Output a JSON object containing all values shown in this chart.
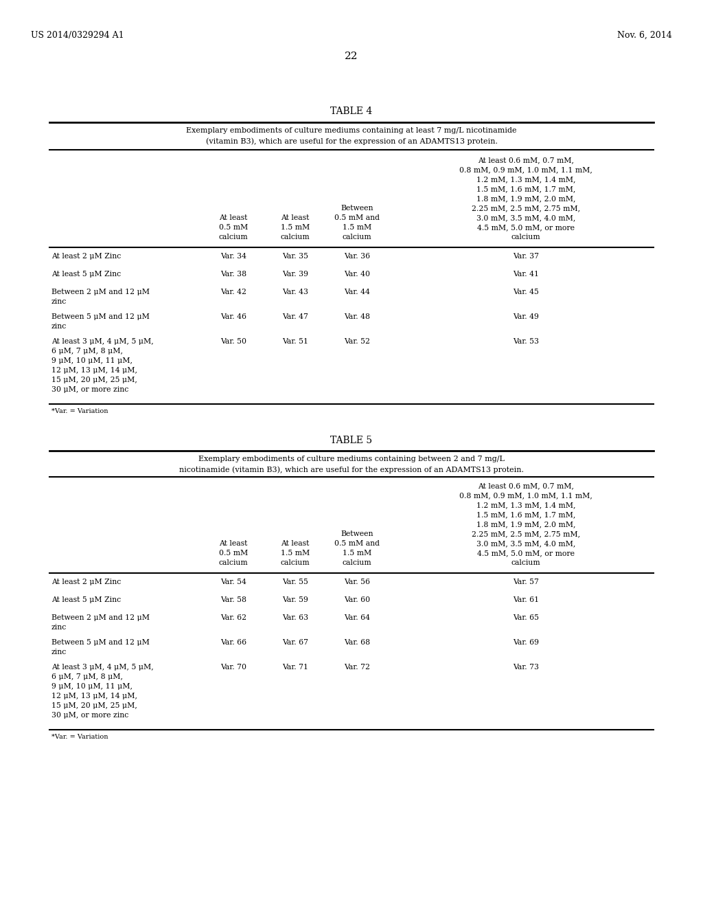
{
  "header_left": "US 2014/0329294 A1",
  "header_right": "Nov. 6, 2014",
  "page_number": "22",
  "bg_color": "#ffffff",
  "table4": {
    "title": "TABLE 4",
    "caption_line1": "Exemplary embodiments of culture mediums containing at least 7 mg/L nicotinamide",
    "caption_line2": "(vitamin B3), which are useful for the expression of an ADAMTS13 protein.",
    "c4_header": [
      "At least 0.6 mM, 0.7 mM,",
      "0.8 mM, 0.9 mM, 1.0 mM, 1.1 mM,",
      "1.2 mM, 1.3 mM, 1.4 mM,",
      "1.5 mM, 1.6 mM, 1.7 mM,",
      "1.8 mM, 1.9 mM, 2.0 mM,",
      "2.25 mM, 2.5 mM, 2.75 mM,",
      "3.0 mM, 3.5 mM, 4.0 mM,",
      "4.5 mM, 5.0 mM, or more",
      "calcium"
    ],
    "rows": [
      {
        "label": [
          "At least 2 μM Zinc"
        ],
        "v1": "Var. 34",
        "v2": "Var. 35",
        "v3": "Var. 36",
        "v4": "Var. 37"
      },
      {
        "label": [
          "At least 5 μM Zinc"
        ],
        "v1": "Var. 38",
        "v2": "Var. 39",
        "v3": "Var. 40",
        "v4": "Var. 41"
      },
      {
        "label": [
          "Between 2 μM and 12 μM",
          "zinc"
        ],
        "v1": "Var. 42",
        "v2": "Var. 43",
        "v3": "Var. 44",
        "v4": "Var. 45"
      },
      {
        "label": [
          "Between 5 μM and 12 μM",
          "zinc"
        ],
        "v1": "Var. 46",
        "v2": "Var. 47",
        "v3": "Var. 48",
        "v4": "Var. 49"
      },
      {
        "label": [
          "At least 3 μM, 4 μM, 5 μM,",
          "6 μM, 7 μM, 8 μM,",
          "9 μM, 10 μM, 11 μM,",
          "12 μM, 13 μM, 14 μM,",
          "15 μM, 20 μM, 25 μM,",
          "30 μM, or more zinc"
        ],
        "v1": "Var. 50",
        "v2": "Var. 51",
        "v3": "Var. 52",
        "v4": "Var. 53"
      }
    ],
    "footnote": "*Var. = Variation"
  },
  "table5": {
    "title": "TABLE 5",
    "caption_line1": "Exemplary embodiments of culture mediums containing between 2 and 7 mg/L",
    "caption_line2": "nicotinamide (vitamin B3), which are useful for the expression of an ADAMTS13 protein.",
    "c4_header": [
      "At least 0.6 mM, 0.7 mM,",
      "0.8 mM, 0.9 mM, 1.0 mM, 1.1 mM,",
      "1.2 mM, 1.3 mM, 1.4 mM,",
      "1.5 mM, 1.6 mM, 1.7 mM,",
      "1.8 mM, 1.9 mM, 2.0 mM,",
      "2.25 mM, 2.5 mM, 2.75 mM,",
      "3.0 mM, 3.5 mM, 4.0 mM,",
      "4.5 mM, 5.0 mM, or more",
      "calcium"
    ],
    "rows": [
      {
        "label": [
          "At least 2 μM Zinc"
        ],
        "v1": "Var. 54",
        "v2": "Var. 55",
        "v3": "Var. 56",
        "v4": "Var. 57"
      },
      {
        "label": [
          "At least 5 μM Zinc"
        ],
        "v1": "Var. 58",
        "v2": "Var. 59",
        "v3": "Var. 60",
        "v4": "Var. 61"
      },
      {
        "label": [
          "Between 2 μM and 12 μM",
          "zinc"
        ],
        "v1": "Var. 62",
        "v2": "Var. 63",
        "v3": "Var. 64",
        "v4": "Var. 65"
      },
      {
        "label": [
          "Between 5 μM and 12 μM",
          "zinc"
        ],
        "v1": "Var. 66",
        "v2": "Var. 67",
        "v3": "Var. 68",
        "v4": "Var. 69"
      },
      {
        "label": [
          "At least 3 μM, 4 μM, 5 μM,",
          "6 μM, 7 μM, 8 μM,",
          "9 μM, 10 μM, 11 μM,",
          "12 μM, 13 μM, 14 μM,",
          "15 μM, 20 μM, 25 μM,",
          "30 μM, or more zinc"
        ],
        "v1": "Var. 70",
        "v2": "Var. 71",
        "v3": "Var. 72",
        "v4": "Var. 73"
      }
    ],
    "footnote": "*Var. = Variation"
  }
}
